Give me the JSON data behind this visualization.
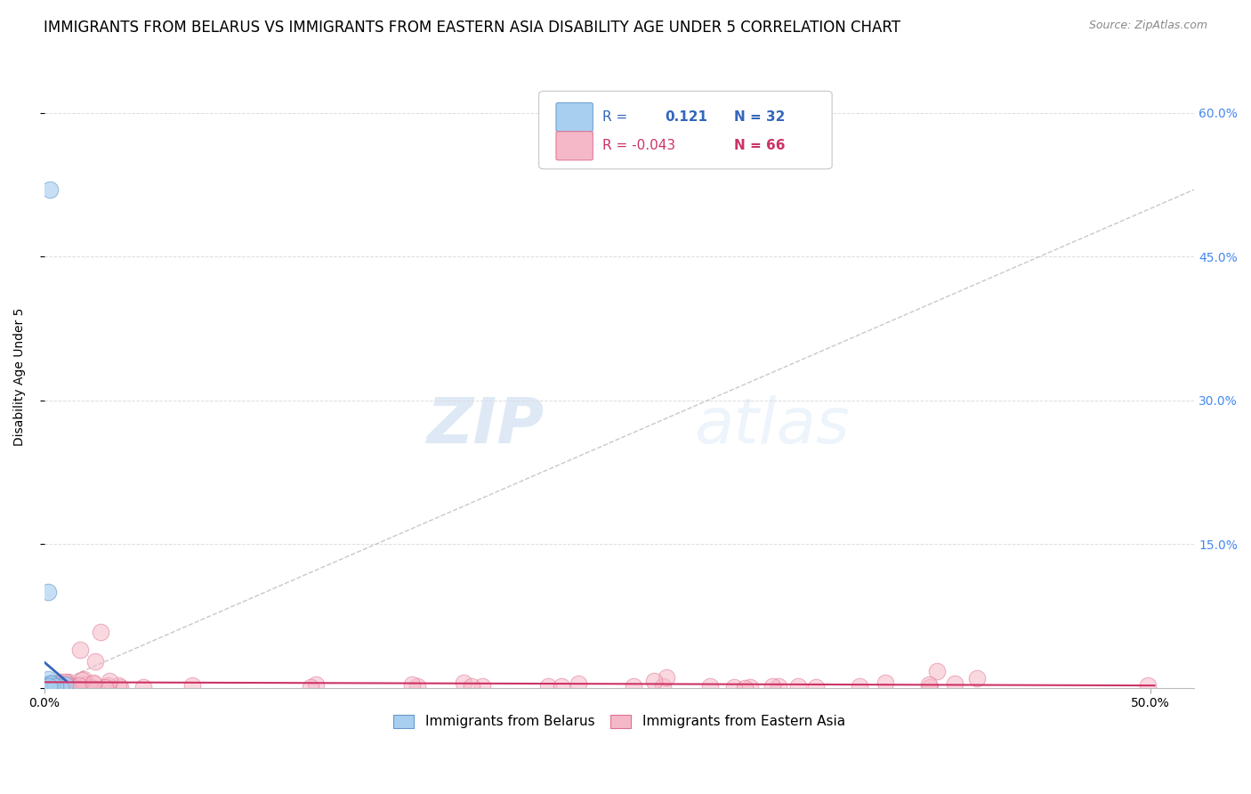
{
  "title": "IMMIGRANTS FROM BELARUS VS IMMIGRANTS FROM EASTERN ASIA DISABILITY AGE UNDER 5 CORRELATION CHART",
  "source": "Source: ZipAtlas.com",
  "xlim": [
    0.0,
    0.52
  ],
  "ylim": [
    0.0,
    0.65
  ],
  "ylabel": "Disability Age Under 5",
  "watermark_zip": "ZIP",
  "watermark_atlas": "atlas",
  "legend_label_blue": "Immigrants from Belarus",
  "legend_label_pink": "Immigrants from Eastern Asia",
  "blue_color": "#a8cff0",
  "pink_color": "#f5b8c8",
  "blue_edge": "#6699cc",
  "pink_edge": "#e07090",
  "title_fontsize": 12,
  "axis_label_fontsize": 10,
  "tick_fontsize": 10,
  "background_color": "#ffffff",
  "grid_color": "#dddddd",
  "diag_line_color": "#bbbbbb",
  "blue_reg_color": "#3366bb",
  "pink_reg_color": "#cc3366",
  "blue_r": "0.121",
  "blue_n": "32",
  "pink_r": "-0.043",
  "pink_n": "66"
}
